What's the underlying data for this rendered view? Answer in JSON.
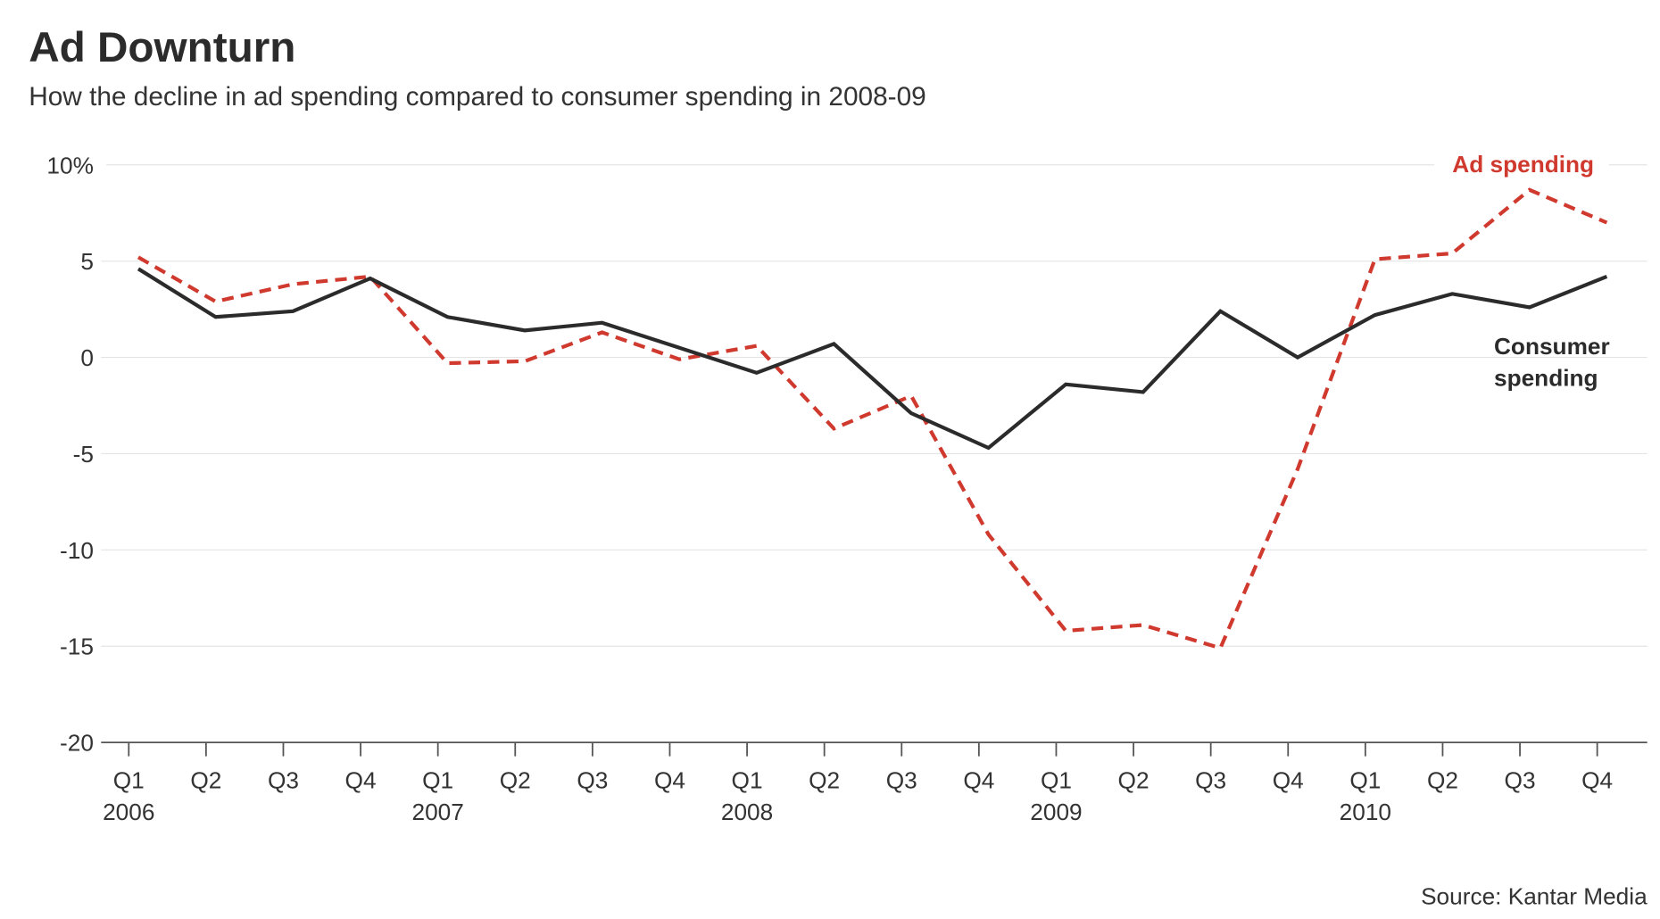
{
  "chart_data": {
    "type": "line",
    "title": "Ad Downturn",
    "subtitle": "How the decline in ad spending compared to consumer spending in 2008-09",
    "source": "Source: Kantar Media",
    "quarters": [
      "Q1",
      "Q2",
      "Q3",
      "Q4",
      "Q1",
      "Q2",
      "Q3",
      "Q4",
      "Q1",
      "Q2",
      "Q3",
      "Q4",
      "Q1",
      "Q2",
      "Q3",
      "Q4",
      "Q1",
      "Q2",
      "Q3",
      "Q4"
    ],
    "years": [
      "2006",
      "2007",
      "2008",
      "2009",
      "2010"
    ],
    "y_ticks": [
      "10%",
      "5",
      "0",
      "-5",
      "-10",
      "-15",
      "-20"
    ],
    "y_tick_values": [
      10,
      5,
      0,
      -5,
      -10,
      -15,
      -20
    ],
    "ylim": [
      -20,
      10
    ],
    "grid": true,
    "series": [
      {
        "name": "Ad spending",
        "color": "#d0392e",
        "style": "dashed",
        "values": [
          5.2,
          2.9,
          3.8,
          4.2,
          -0.3,
          -0.2,
          1.3,
          -0.1,
          0.6,
          -3.7,
          -2.0,
          -9.2,
          -14.2,
          -13.9,
          -15.1,
          -5.8,
          5.1,
          5.4,
          8.7,
          7.0
        ]
      },
      {
        "name": "Consumer spending",
        "name_lines": [
          "Consumer",
          "spending"
        ],
        "color": "#2b2b2b",
        "style": "solid",
        "values": [
          4.6,
          2.1,
          2.4,
          4.1,
          2.1,
          1.4,
          1.8,
          0.5,
          -0.8,
          0.7,
          -2.9,
          -4.7,
          -1.4,
          -1.8,
          2.4,
          0.0,
          2.2,
          3.3,
          2.6,
          4.2
        ]
      }
    ]
  }
}
